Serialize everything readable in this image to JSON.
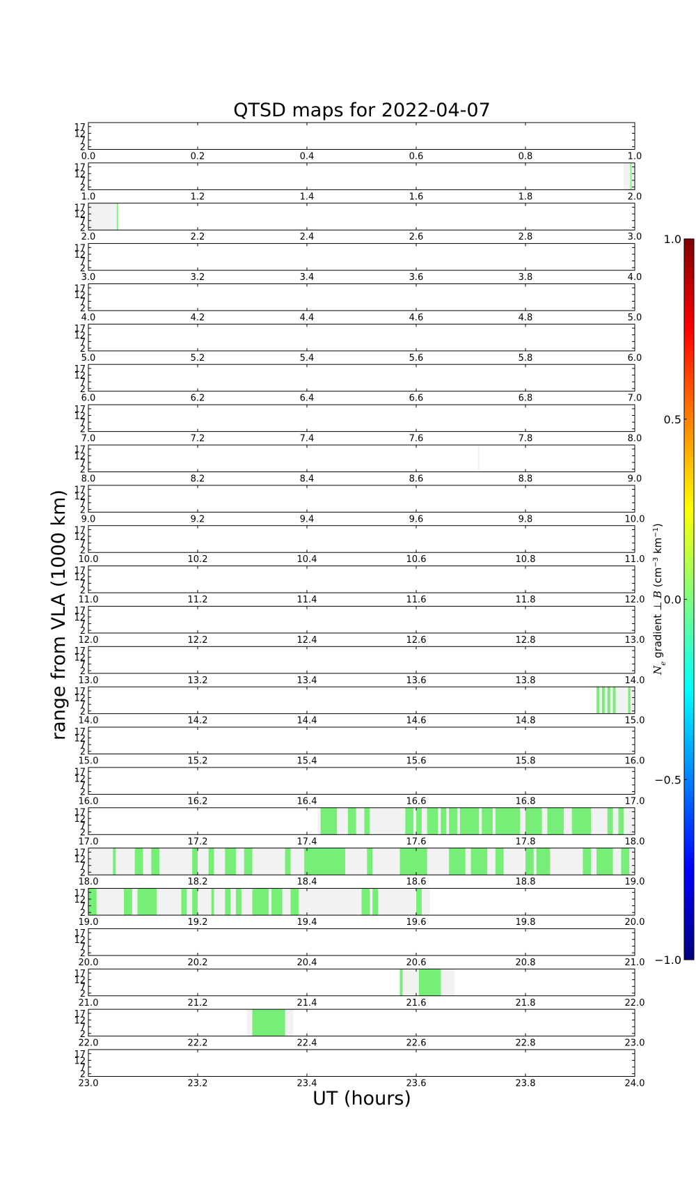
{
  "chart_data": {
    "type": "heatmap",
    "title": "QTSD maps for 2022-04-07",
    "xlabel": "UT (hours)",
    "ylabel": "range from VLA (1000 km)",
    "y_ticks": [
      "17",
      "12",
      "7",
      "2"
    ],
    "ylim": [
      0,
      20
    ],
    "x_tick_step": 0.2,
    "colorbar": {
      "label": "N_e gradient ⊥ B (cm⁻³ km⁻¹)",
      "label_parts": [
        "N",
        "e",
        " gradient ⊥ ",
        "B",
        " (cm",
        "−3",
        " km",
        "−1",
        ")"
      ],
      "ticks": [
        "1.0",
        "0.5",
        "0.0",
        "−0.5",
        "−1.0"
      ],
      "range": [
        -1.0,
        1.0
      ],
      "colors": [
        "#00007f",
        "#0000ff",
        "#0080ff",
        "#00ffff",
        "#80ff80",
        "#ffff00",
        "#ff8000",
        "#ff0000",
        "#7f0000"
      ]
    },
    "colors": {
      "coverage": "#f2f2f2",
      "detection": "#77ee77"
    },
    "rows": [
      {
        "start": 0,
        "end": 1,
        "coverage": [],
        "detections": []
      },
      {
        "start": 1,
        "end": 2,
        "coverage": [
          [
            1.98,
            2.0
          ]
        ],
        "detections": [
          [
            1.992,
            1.994
          ]
        ]
      },
      {
        "start": 2,
        "end": 3,
        "coverage": [
          [
            2.0,
            2.055
          ]
        ],
        "detections": [
          [
            2.052,
            2.054
          ]
        ]
      },
      {
        "start": 3,
        "end": 4,
        "coverage": [],
        "detections": []
      },
      {
        "start": 4,
        "end": 5,
        "coverage": [],
        "detections": []
      },
      {
        "start": 5,
        "end": 6,
        "coverage": [],
        "detections": []
      },
      {
        "start": 6,
        "end": 7,
        "coverage": [],
        "detections": []
      },
      {
        "start": 7,
        "end": 8,
        "coverage": [],
        "detections": []
      },
      {
        "start": 8,
        "end": 9,
        "coverage": [
          [
            8.713,
            8.716
          ]
        ],
        "detections": []
      },
      {
        "start": 9,
        "end": 10,
        "coverage": [],
        "detections": []
      },
      {
        "start": 10,
        "end": 11,
        "coverage": [],
        "detections": []
      },
      {
        "start": 11,
        "end": 12,
        "coverage": [],
        "detections": []
      },
      {
        "start": 12,
        "end": 13,
        "coverage": [],
        "detections": []
      },
      {
        "start": 13,
        "end": 14,
        "coverage": [],
        "detections": []
      },
      {
        "start": 14,
        "end": 15,
        "coverage": [
          [
            14.93,
            15.0
          ]
        ],
        "detections": [
          [
            14.93,
            14.935
          ],
          [
            14.94,
            14.945
          ],
          [
            14.95,
            14.955
          ],
          [
            14.96,
            14.965
          ],
          [
            14.988,
            14.992
          ]
        ]
      },
      {
        "start": 15,
        "end": 16,
        "coverage": [],
        "detections": []
      },
      {
        "start": 16,
        "end": 17,
        "coverage": [],
        "detections": []
      },
      {
        "start": 17,
        "end": 18,
        "coverage": [
          [
            17.42,
            18.0
          ]
        ],
        "detections": [
          [
            17.425,
            17.455
          ],
          [
            17.475,
            17.49
          ],
          [
            17.505,
            17.515
          ],
          [
            17.58,
            17.595
          ],
          [
            17.6,
            17.61
          ],
          [
            17.62,
            17.64
          ],
          [
            17.645,
            17.655
          ],
          [
            17.66,
            17.675
          ],
          [
            17.68,
            17.715
          ],
          [
            17.72,
            17.74
          ],
          [
            17.745,
            17.77
          ],
          [
            17.77,
            17.79
          ],
          [
            17.8,
            17.83
          ],
          [
            17.84,
            17.87
          ],
          [
            17.885,
            17.92
          ],
          [
            17.95,
            17.96
          ],
          [
            17.97,
            17.98
          ]
        ]
      },
      {
        "start": 18,
        "end": 19,
        "coverage": [
          [
            18.0,
            19.0
          ]
        ],
        "detections": [
          [
            18.045,
            18.05
          ],
          [
            18.085,
            18.1
          ],
          [
            18.115,
            18.13
          ],
          [
            18.19,
            18.2
          ],
          [
            18.22,
            18.23
          ],
          [
            18.25,
            18.27
          ],
          [
            18.285,
            18.3
          ],
          [
            18.36,
            18.37
          ],
          [
            18.395,
            18.47
          ],
          [
            18.51,
            18.52
          ],
          [
            18.57,
            18.62
          ],
          [
            18.66,
            18.69
          ],
          [
            18.7,
            18.73
          ],
          [
            18.745,
            18.76
          ],
          [
            18.8,
            18.815
          ],
          [
            18.82,
            18.845
          ],
          [
            18.905,
            18.92
          ],
          [
            18.93,
            18.96
          ],
          [
            18.975,
            18.99
          ]
        ]
      },
      {
        "start": 19,
        "end": 20,
        "coverage": [
          [
            19.0,
            19.625
          ]
        ],
        "detections": [
          [
            19.0,
            19.015
          ],
          [
            19.065,
            19.08
          ],
          [
            19.09,
            19.125
          ],
          [
            19.17,
            19.18
          ],
          [
            19.19,
            19.2
          ],
          [
            19.225,
            19.23
          ],
          [
            19.25,
            19.26
          ],
          [
            19.27,
            19.28
          ],
          [
            19.3,
            19.33
          ],
          [
            19.335,
            19.355
          ],
          [
            19.37,
            19.385
          ],
          [
            19.5,
            19.515
          ],
          [
            19.52,
            19.53
          ],
          [
            19.6,
            19.61
          ]
        ]
      },
      {
        "start": 20,
        "end": 21,
        "coverage": [],
        "detections": []
      },
      {
        "start": 21,
        "end": 22,
        "coverage": [
          [
            21.57,
            21.67
          ]
        ],
        "detections": [
          [
            21.57,
            21.575
          ],
          [
            21.605,
            21.635
          ],
          [
            21.635,
            21.645
          ]
        ]
      },
      {
        "start": 22,
        "end": 23,
        "coverage": [
          [
            22.29,
            22.375
          ]
        ],
        "detections": [
          [
            22.3,
            22.36
          ]
        ]
      },
      {
        "start": 23,
        "end": 24,
        "coverage": [],
        "detections": []
      }
    ]
  }
}
